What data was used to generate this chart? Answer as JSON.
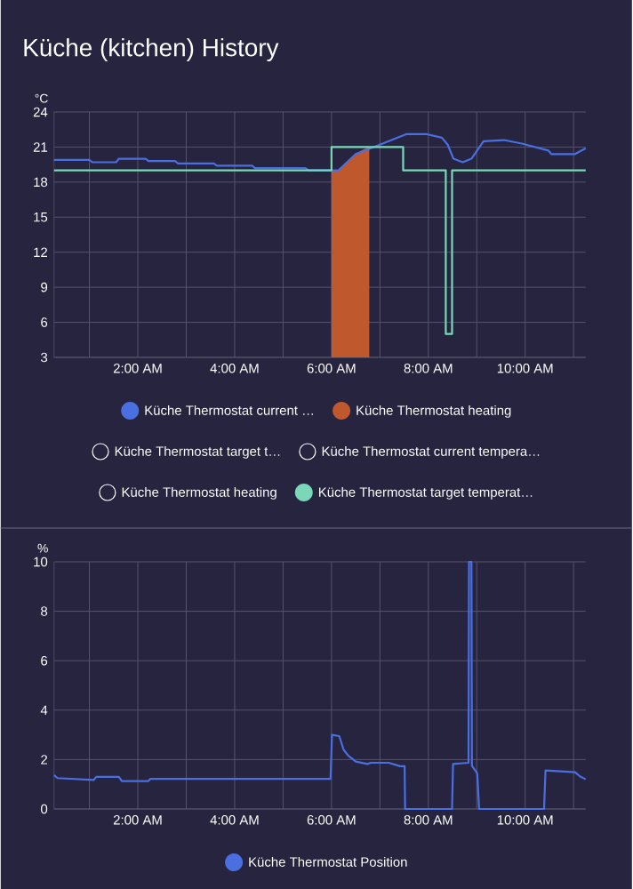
{
  "chart_data": [
    {
      "type": "line",
      "title": "Küche (kitchen) History",
      "ylabel": "°C",
      "xlim": [
        0.27,
        11.25
      ],
      "ylim": [
        3,
        24
      ],
      "xticks": [
        {
          "value": 1,
          "label": null
        },
        {
          "value": 2,
          "label": "2:00 AM"
        },
        {
          "value": 3,
          "label": null
        },
        {
          "value": 4,
          "label": "4:00 AM"
        },
        {
          "value": 5,
          "label": null
        },
        {
          "value": 6,
          "label": "6:00 AM"
        },
        {
          "value": 7,
          "label": null
        },
        {
          "value": 8,
          "label": "8:00 AM"
        },
        {
          "value": 9,
          "label": null
        },
        {
          "value": 10,
          "label": "10:00 AM"
        },
        {
          "value": 11,
          "label": null
        }
      ],
      "yticks": [
        3,
        6,
        9,
        12,
        15,
        18,
        21,
        24
      ],
      "grid": true,
      "legend": "bottom",
      "marker": "none",
      "series": [
        {
          "name": "Küche Thermostat current …",
          "color": "#4a6fe0",
          "x": [
            0.27,
            1.0,
            1.06,
            1.55,
            1.61,
            2.16,
            2.22,
            2.77,
            2.83,
            3.57,
            3.63,
            4.36,
            4.42,
            5.46,
            5.53,
            6.14,
            6.32,
            6.5,
            6.87,
            7.24,
            7.54,
            7.97,
            8.28,
            8.4,
            8.52,
            8.71,
            8.89,
            9.14,
            9.56,
            9.93,
            10.48,
            10.54,
            11.03,
            11.25
          ],
          "values": [
            19.9,
            19.9,
            19.7,
            19.7,
            20.0,
            20.0,
            19.8,
            19.8,
            19.6,
            19.6,
            19.4,
            19.4,
            19.2,
            19.2,
            19.0,
            19.0,
            19.7,
            20.4,
            21.0,
            21.6,
            22.1,
            22.1,
            21.8,
            21.2,
            20.0,
            19.7,
            20.0,
            21.5,
            21.6,
            21.3,
            20.7,
            20.4,
            20.4,
            20.9
          ]
        },
        {
          "name": "Küche Thermostat heating",
          "color": "#c0582e",
          "type": "area",
          "x": [
            6.0,
            6.14,
            6.32,
            6.5,
            6.66,
            6.78
          ],
          "values": [
            19.0,
            19.0,
            19.7,
            20.4,
            20.8,
            21.0
          ]
        },
        {
          "name": "Küche Thermostat target t…",
          "color": null
        },
        {
          "name": "Küche Thermostat current tempera…",
          "color": null
        },
        {
          "name": "Küche Thermostat heating",
          "color": null
        },
        {
          "name": "Küche Thermostat target temperat…",
          "color": "#7ad7b8",
          "type": "step",
          "x": [
            0.27,
            6.0,
            7.48,
            8.36,
            8.49,
            11.25
          ],
          "values": [
            19,
            21,
            19,
            5,
            19,
            19
          ]
        }
      ]
    },
    {
      "type": "line",
      "ylabel": "%",
      "xlim": [
        0.27,
        11.25
      ],
      "ylim": [
        0,
        10
      ],
      "xticks": [
        {
          "value": 1,
          "label": null
        },
        {
          "value": 2,
          "label": "2:00 AM"
        },
        {
          "value": 3,
          "label": null
        },
        {
          "value": 4,
          "label": "4:00 AM"
        },
        {
          "value": 5,
          "label": null
        },
        {
          "value": 6,
          "label": "6:00 AM"
        },
        {
          "value": 7,
          "label": null
        },
        {
          "value": 8,
          "label": "8:00 AM"
        },
        {
          "value": 9,
          "label": null
        },
        {
          "value": 10,
          "label": "10:00 AM"
        },
        {
          "value": 11,
          "label": null
        }
      ],
      "yticks": [
        0,
        2,
        4,
        6,
        8,
        10
      ],
      "grid": true,
      "legend": "bottom",
      "marker": "none",
      "series": [
        {
          "name": "Küche Thermostat Position",
          "color": "#4a6fe0",
          "x": [
            0.27,
            0.34,
            1.09,
            1.14,
            1.61,
            1.67,
            2.22,
            2.26,
            5.98,
            6.01,
            6.16,
            6.25,
            6.35,
            6.5,
            6.74,
            6.81,
            7.18,
            7.42,
            7.51,
            7.52,
            8.49,
            8.51,
            8.83,
            8.84,
            8.89,
            8.9,
            9.01,
            9.05,
            10.39,
            10.42,
            11.03,
            11.13,
            11.25
          ],
          "values": [
            1.37,
            1.25,
            1.17,
            1.3,
            1.3,
            1.13,
            1.13,
            1.22,
            1.22,
            3.0,
            2.95,
            2.4,
            2.15,
            1.92,
            1.82,
            1.87,
            1.87,
            1.73,
            1.73,
            0,
            0,
            1.82,
            1.87,
            10,
            10,
            1.75,
            1.44,
            0,
            0,
            1.56,
            1.49,
            1.32,
            1.2
          ]
        }
      ]
    }
  ]
}
